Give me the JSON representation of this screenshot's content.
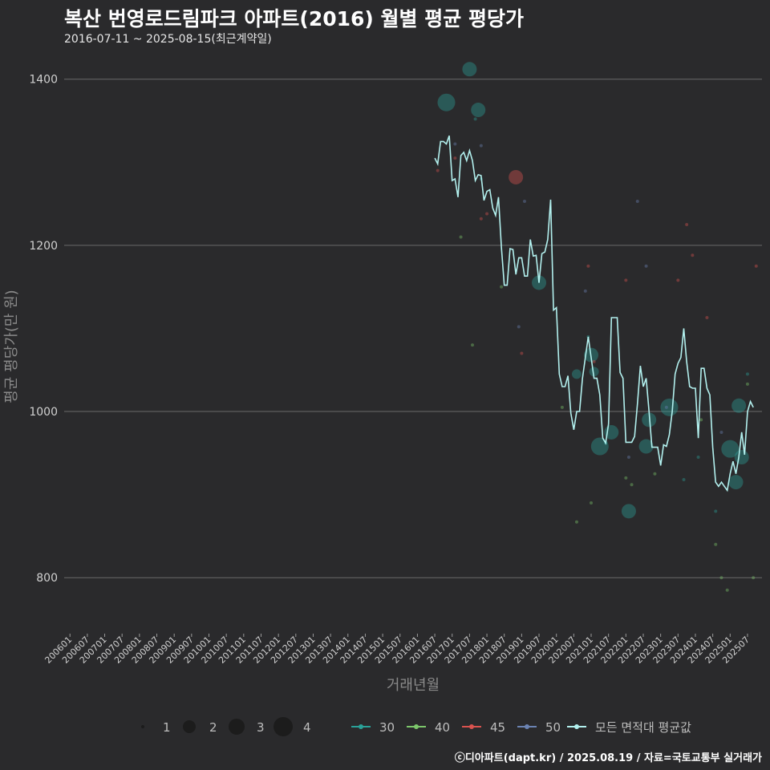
{
  "header": {
    "title": "복산 번영로드림파크 아파트(2016) 월별 평균 평당가",
    "subtitle": "2016-07-11 ~ 2025-08-15(최근계약일)",
    "credit": "ⓒ디아파트(dapt.kr) / 2025.08.19 / 자료=국토교통부 실거래가"
  },
  "chart_data": {
    "type": "scatter",
    "xlabel": "거래년월",
    "ylabel": "평균 평당가(만 원)",
    "ylim": [
      750,
      1420
    ],
    "yticks": [
      800,
      1000,
      1200,
      1400
    ],
    "xlim": [
      "2005-11",
      "2025-12"
    ],
    "xticks": [
      "200601",
      "200607",
      "200701",
      "200707",
      "200801",
      "200807",
      "200901",
      "200907",
      "201001",
      "201007",
      "201101",
      "201107",
      "201201",
      "201207",
      "201301",
      "201307",
      "201401",
      "201407",
      "201501",
      "201507",
      "201601",
      "201607",
      "201701",
      "201707",
      "201801",
      "201807",
      "201901",
      "201907",
      "202001",
      "202007",
      "202101",
      "202107",
      "202201",
      "202207",
      "202301",
      "202307",
      "202401",
      "202407",
      "202501",
      "202507"
    ],
    "grid": true,
    "size_legend": {
      "values": [
        "1",
        "2",
        "3",
        "4"
      ]
    },
    "color_legend": [
      {
        "label": "30",
        "color": "#2aa198"
      },
      {
        "label": "40",
        "color": "#7cc76b"
      },
      {
        "label": "45",
        "color": "#d9534f"
      },
      {
        "label": "50",
        "color": "#6b83b3"
      },
      {
        "label": "모든 면적대 평균값",
        "color": "#b2f0ee"
      }
    ],
    "series": [
      {
        "name": "모든 면적대 평균값",
        "type": "line",
        "color": "#b2f0ee",
        "points": [
          [
            "2016-07",
            1305
          ],
          [
            "2016-08",
            1298
          ],
          [
            "2016-09",
            1325
          ],
          [
            "2016-10",
            1325
          ],
          [
            "2016-11",
            1322
          ],
          [
            "2016-12",
            1332
          ],
          [
            "2017-01",
            1278
          ],
          [
            "2017-02",
            1280
          ],
          [
            "2017-03",
            1258
          ],
          [
            "2017-04",
            1308
          ],
          [
            "2017-05",
            1312
          ],
          [
            "2017-06",
            1302
          ],
          [
            "2017-07",
            1314
          ],
          [
            "2017-08",
            1302
          ],
          [
            "2017-09",
            1278
          ],
          [
            "2017-10",
            1285
          ],
          [
            "2017-11",
            1284
          ],
          [
            "2017-12",
            1254
          ],
          [
            "2018-01",
            1265
          ],
          [
            "2018-02",
            1267
          ],
          [
            "2018-03",
            1245
          ],
          [
            "2018-04",
            1236
          ],
          [
            "2018-05",
            1258
          ],
          [
            "2018-06",
            1198
          ],
          [
            "2018-07",
            1152
          ],
          [
            "2018-08",
            1152
          ],
          [
            "2018-09",
            1196
          ],
          [
            "2018-10",
            1195
          ],
          [
            "2018-11",
            1165
          ],
          [
            "2018-12",
            1185
          ],
          [
            "2019-01",
            1185
          ],
          [
            "2019-02",
            1163
          ],
          [
            "2019-03",
            1163
          ],
          [
            "2019-04",
            1207
          ],
          [
            "2019-05",
            1187
          ],
          [
            "2019-06",
            1188
          ],
          [
            "2019-07",
            1155
          ],
          [
            "2019-08",
            1190
          ],
          [
            "2019-09",
            1192
          ],
          [
            "2019-10",
            1207
          ],
          [
            "2019-11",
            1255
          ],
          [
            "2019-12",
            1122
          ],
          [
            "2020-01",
            1125
          ],
          [
            "2020-02",
            1045
          ],
          [
            "2020-03",
            1030
          ],
          [
            "2020-04",
            1030
          ],
          [
            "2020-05",
            1043
          ],
          [
            "2020-06",
            998
          ],
          [
            "2020-07",
            978
          ],
          [
            "2020-08",
            1000
          ],
          [
            "2020-09",
            1000
          ],
          [
            "2020-10",
            1040
          ],
          [
            "2020-11",
            1065
          ],
          [
            "2020-12",
            1090
          ],
          [
            "2021-01",
            1065
          ],
          [
            "2021-02",
            1040
          ],
          [
            "2021-03",
            1040
          ],
          [
            "2021-04",
            1020
          ],
          [
            "2021-05",
            968
          ],
          [
            "2021-06",
            962
          ],
          [
            "2021-07",
            985
          ],
          [
            "2021-08",
            1113
          ],
          [
            "2021-09",
            1113
          ],
          [
            "2021-10",
            1113
          ],
          [
            "2021-11",
            1047
          ],
          [
            "2021-12",
            1040
          ],
          [
            "2022-01",
            963
          ],
          [
            "2022-02",
            963
          ],
          [
            "2022-03",
            963
          ],
          [
            "2022-04",
            970
          ],
          [
            "2022-05",
            1010
          ],
          [
            "2022-06",
            1055
          ],
          [
            "2022-07",
            1030
          ],
          [
            "2022-08",
            1040
          ],
          [
            "2022-09",
            1000
          ],
          [
            "2022-10",
            957
          ],
          [
            "2022-11",
            957
          ],
          [
            "2022-12",
            957
          ],
          [
            "2023-01",
            935
          ],
          [
            "2023-02",
            960
          ],
          [
            "2023-03",
            958
          ],
          [
            "2023-04",
            972
          ],
          [
            "2023-05",
            1000
          ],
          [
            "2023-06",
            1045
          ],
          [
            "2023-07",
            1058
          ],
          [
            "2023-08",
            1065
          ],
          [
            "2023-09",
            1100
          ],
          [
            "2023-10",
            1060
          ],
          [
            "2023-11",
            1030
          ],
          [
            "2023-12",
            1028
          ],
          [
            "2024-01",
            1028
          ],
          [
            "2024-02",
            968
          ],
          [
            "2024-03",
            1052
          ],
          [
            "2024-04",
            1052
          ],
          [
            "2024-05",
            1028
          ],
          [
            "2024-06",
            1020
          ],
          [
            "2024-07",
            957
          ],
          [
            "2024-08",
            915
          ],
          [
            "2024-09",
            910
          ],
          [
            "2024-10",
            915
          ],
          [
            "2024-11",
            910
          ],
          [
            "2024-12",
            905
          ],
          [
            "2025-01",
            925
          ],
          [
            "2025-02",
            940
          ],
          [
            "2025-03",
            925
          ],
          [
            "2025-04",
            945
          ],
          [
            "2025-05",
            975
          ],
          [
            "2025-06",
            948
          ],
          [
            "2025-07",
            1000
          ],
          [
            "2025-08",
            1012
          ],
          [
            "2025-09",
            1005
          ]
        ]
      },
      {
        "name": "30",
        "type": "scatter",
        "color": "#2aa198",
        "points": [
          [
            "2016-11",
            1372,
            4
          ],
          [
            "2017-07",
            1412,
            3
          ],
          [
            "2017-09",
            1352,
            1
          ],
          [
            "2017-10",
            1363,
            3
          ],
          [
            "2017-11",
            1280,
            1
          ],
          [
            "2019-07",
            1155,
            3
          ],
          [
            "2020-08",
            1045,
            2
          ],
          [
            "2020-12",
            1090,
            1
          ],
          [
            "2021-01",
            1068,
            3
          ],
          [
            "2021-02",
            1048,
            2
          ],
          [
            "2021-04",
            958,
            4
          ],
          [
            "2021-06",
            962,
            1
          ],
          [
            "2021-08",
            975,
            3
          ],
          [
            "2022-02",
            880,
            3
          ],
          [
            "2022-08",
            958,
            3
          ],
          [
            "2022-09",
            990,
            3
          ],
          [
            "2023-04",
            1005,
            4
          ],
          [
            "2024-08",
            880,
            1
          ],
          [
            "2025-01",
            955,
            4
          ],
          [
            "2025-03",
            915,
            3
          ],
          [
            "2025-04",
            1007,
            3
          ],
          [
            "2025-05",
            945,
            3
          ],
          [
            "2025-07",
            1045,
            1
          ],
          [
            "2024-02",
            945,
            1
          ],
          [
            "2023-09",
            918,
            1
          ]
        ]
      },
      {
        "name": "40",
        "type": "scatter",
        "color": "#7cc76b",
        "points": [
          [
            "2017-04",
            1210,
            1
          ],
          [
            "2017-08",
            1080,
            1
          ],
          [
            "2018-06",
            1150,
            1
          ],
          [
            "2020-08",
            867,
            1
          ],
          [
            "2021-01",
            890,
            1
          ],
          [
            "2022-01",
            920,
            1
          ],
          [
            "2022-03",
            912,
            1
          ],
          [
            "2024-08",
            840,
            1
          ],
          [
            "2024-10",
            800,
            1
          ],
          [
            "2024-12",
            785,
            1
          ],
          [
            "2025-09",
            800,
            1
          ],
          [
            "2025-07",
            1033,
            1
          ],
          [
            "2020-03",
            1005,
            1
          ],
          [
            "2022-11",
            925,
            1
          ],
          [
            "2024-03",
            990,
            1
          ]
        ]
      },
      {
        "name": "45",
        "type": "scatter",
        "color": "#d9534f",
        "points": [
          [
            "2016-08",
            1290,
            1
          ],
          [
            "2017-02",
            1305,
            1
          ],
          [
            "2017-11",
            1232,
            1
          ],
          [
            "2018-01",
            1238,
            1
          ],
          [
            "2018-11",
            1282,
            3
          ],
          [
            "2019-01",
            1070,
            1
          ],
          [
            "2020-12",
            1175,
            1
          ],
          [
            "2021-02",
            1060,
            1
          ],
          [
            "2022-01",
            1158,
            1
          ],
          [
            "2023-07",
            1158,
            1
          ],
          [
            "2023-10",
            1225,
            1
          ],
          [
            "2023-12",
            1188,
            1
          ],
          [
            "2024-05",
            1113,
            1
          ],
          [
            "2025-10",
            1175,
            1
          ]
        ]
      },
      {
        "name": "50",
        "type": "scatter",
        "color": "#6b83b3",
        "points": [
          [
            "2017-02",
            1322,
            1
          ],
          [
            "2017-11",
            1320,
            1
          ],
          [
            "2019-02",
            1253,
            1
          ],
          [
            "2018-12",
            1102,
            1
          ],
          [
            "2020-11",
            1145,
            1
          ],
          [
            "2022-02",
            945,
            1
          ],
          [
            "2022-05",
            1253,
            1
          ],
          [
            "2022-08",
            1175,
            1
          ],
          [
            "2023-03",
            1005,
            1
          ],
          [
            "2024-10",
            975,
            1
          ]
        ]
      }
    ]
  }
}
